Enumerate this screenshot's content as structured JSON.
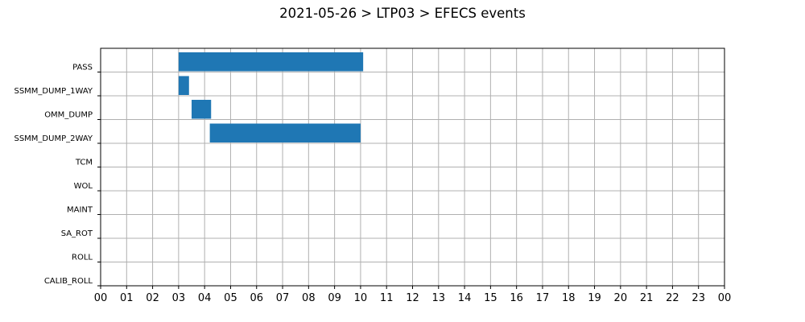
{
  "chart_data": {
    "type": "bar",
    "orientation": "horizontal",
    "title": "2021-05-26 > LTP03 > EFECS events",
    "xlabel": "",
    "ylabel": "",
    "categories": [
      "PASS",
      "SSMM_DUMP_1WAY",
      "OMM_DUMP",
      "SSMM_DUMP_2WAY",
      "TCM",
      "WOL",
      "MAINT",
      "SA_ROT",
      "ROLL",
      "CALIB_ROLL"
    ],
    "x_tick_labels": [
      "00",
      "01",
      "02",
      "03",
      "04",
      "05",
      "06",
      "07",
      "08",
      "09",
      "10",
      "11",
      "12",
      "13",
      "14",
      "15",
      "16",
      "17",
      "18",
      "19",
      "20",
      "21",
      "22",
      "23",
      "00"
    ],
    "xlim_hours": [
      0,
      24
    ],
    "grid": true,
    "bar_color": "#1f77b4",
    "events": [
      {
        "category": "PASS",
        "start_hour": 3.0,
        "end_hour": 10.1
      },
      {
        "category": "SSMM_DUMP_1WAY",
        "start_hour": 3.0,
        "end_hour": 3.4
      },
      {
        "category": "OMM_DUMP",
        "start_hour": 3.5,
        "end_hour": 4.25
      },
      {
        "category": "SSMM_DUMP_2WAY",
        "start_hour": 4.2,
        "end_hour": 10.0
      }
    ]
  }
}
